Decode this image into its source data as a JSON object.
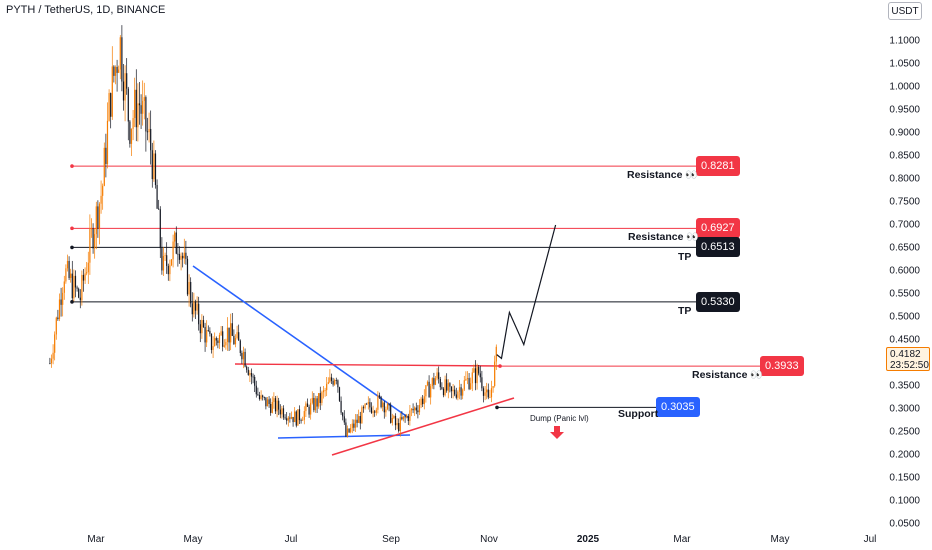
{
  "header": {
    "symbol": "PYTH / TetherUS, 1D, BINANCE",
    "currency": "USDT"
  },
  "current_price": {
    "price": "0.4182",
    "countdown": "23:52:50"
  },
  "levels": [
    {
      "id": "res1",
      "value": "0.8281",
      "label": "Resistance",
      "color": "#f23645"
    },
    {
      "id": "res2",
      "value": "0.6927",
      "label": "Resistance",
      "color": "#f23645"
    },
    {
      "id": "tp1",
      "value": "0.6513",
      "label": "TP",
      "color": "#131722"
    },
    {
      "id": "tp2",
      "value": "0.5330",
      "label": "TP",
      "color": "#131722"
    },
    {
      "id": "res3",
      "value": "0.3933",
      "label": "Resistance",
      "color": "#f23645"
    },
    {
      "id": "sup",
      "value": "0.3035",
      "label": "Support",
      "color": "#2962ff"
    }
  ],
  "annotations": {
    "dump": "Dump (Panic lvl)"
  },
  "chart_data": {
    "type": "candlestick",
    "title": "PYTH / TetherUS, 1D, BINANCE",
    "ylabel": "USDT",
    "ylim": [
      0.03,
      1.14
    ],
    "grid": false,
    "y_ticks": [
      "1.1000",
      "1.0500",
      "1.0000",
      "0.9500",
      "0.9000",
      "0.8500",
      "0.8000",
      "0.7500",
      "0.7000",
      "0.6500",
      "0.6000",
      "0.5500",
      "0.5000",
      "0.4500",
      "0.4000",
      "0.3500",
      "0.3000",
      "0.2500",
      "0.2000",
      "0.1500",
      "0.1000",
      "0.0500"
    ],
    "x_ticks": [
      "Mar",
      "May",
      "Jul",
      "Sep",
      "Nov",
      "2025",
      "Mar",
      "May",
      "Jul"
    ],
    "price_path": [
      {
        "date": "Feb 1",
        "close": 0.4
      },
      {
        "date": "Feb 10",
        "close": 0.6
      },
      {
        "date": "Feb 20",
        "close": 0.54
      },
      {
        "date": "Feb 27",
        "close": 0.67
      },
      {
        "date": "Mar 5",
        "close": 0.78
      },
      {
        "date": "Mar 10",
        "close": 0.98
      },
      {
        "date": "Mar 16",
        "close": 1.1
      },
      {
        "date": "Mar 22",
        "close": 0.92
      },
      {
        "date": "Mar 28",
        "close": 0.97
      },
      {
        "date": "Apr 5",
        "close": 0.86
      },
      {
        "date": "Apr 12",
        "close": 0.6
      },
      {
        "date": "Apr 22",
        "close": 0.67
      },
      {
        "date": "May 1",
        "close": 0.52
      },
      {
        "date": "May 12",
        "close": 0.44
      },
      {
        "date": "May 22",
        "close": 0.47
      },
      {
        "date": "Jun 1",
        "close": 0.43
      },
      {
        "date": "Jun 12",
        "close": 0.32
      },
      {
        "date": "Jun 25",
        "close": 0.3
      },
      {
        "date": "Jul 5",
        "close": 0.28
      },
      {
        "date": "Jul 20",
        "close": 0.32
      },
      {
        "date": "Jul 30",
        "close": 0.38
      },
      {
        "date": "Aug 5",
        "close": 0.24
      },
      {
        "date": "Aug 18",
        "close": 0.3
      },
      {
        "date": "Aug 28",
        "close": 0.32
      },
      {
        "date": "Sep 6",
        "close": 0.26
      },
      {
        "date": "Sep 20",
        "close": 0.31
      },
      {
        "date": "Oct 1",
        "close": 0.37
      },
      {
        "date": "Oct 10",
        "close": 0.33
      },
      {
        "date": "Oct 20",
        "close": 0.36
      },
      {
        "date": "Oct 28",
        "close": 0.38
      },
      {
        "date": "Nov 3",
        "close": 0.31
      },
      {
        "date": "Nov 8",
        "close": 0.4182
      }
    ],
    "projection": [
      {
        "date": "Nov 11",
        "value": 0.41
      },
      {
        "date": "Nov 16",
        "value": 0.51
      },
      {
        "date": "Nov 25",
        "value": 0.44
      },
      {
        "date": "Dec 15",
        "value": 0.7
      }
    ]
  }
}
